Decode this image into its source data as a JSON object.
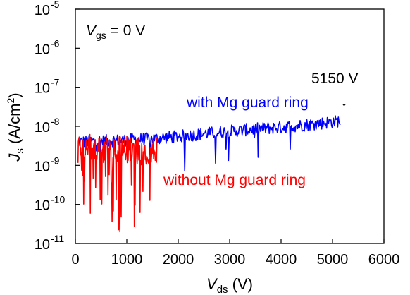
{
  "chart_data": {
    "type": "line",
    "title": "",
    "xlabel": {
      "main": "V",
      "sub": "ds",
      "unit": " (V)"
    },
    "ylabel": {
      "main": "J",
      "sub": "s",
      "unit_pre": " (A/cm",
      "unit_sup": "2",
      "unit_post": ")"
    },
    "xlim": [
      0,
      6000
    ],
    "ylim": [
      1e-11,
      1e-05
    ],
    "yscale": "log",
    "grid": false,
    "legend": "none",
    "x_ticks": [
      "0",
      "1000",
      "2000",
      "3000",
      "4000",
      "5000",
      "6000"
    ],
    "y_ticks": [
      {
        "base": "10",
        "exp": "-5"
      },
      {
        "base": "10",
        "exp": "-6"
      },
      {
        "base": "10",
        "exp": "-7"
      },
      {
        "base": "10",
        "exp": "-8"
      },
      {
        "base": "10",
        "exp": "-9"
      },
      {
        "base": "10",
        "exp": "-10"
      },
      {
        "base": "10",
        "exp": "-11"
      }
    ],
    "condition": {
      "main": "V",
      "sub": "gs",
      "rest": " = 0 V"
    },
    "series": [
      {
        "label": "with Mg guard ring",
        "color": "#0000ff",
        "x": [
          50,
          500,
          1000,
          1500,
          2000,
          2500,
          3000,
          3500,
          4000,
          4500,
          5000,
          5150
        ],
        "values": [
          4e-09,
          4.2e-09,
          4.5e-09,
          4.8e-09,
          5.5e-09,
          6.5e-09,
          7.5e-09,
          8.5e-09,
          9.5e-09,
          1.1e-08,
          1.3e-08,
          1.4e-08
        ]
      },
      {
        "label": "without Mg guard ring",
        "color": "#ff0000",
        "x": [
          50,
          200,
          400,
          600,
          800,
          1000,
          1200,
          1400,
          1600
        ],
        "values": [
          3e-09,
          3e-09,
          2.8e-09,
          2.5e-09,
          2.5e-09,
          2.5e-09,
          2.3e-09,
          2.3e-09,
          2.5e-09
        ]
      }
    ],
    "annotations": [
      {
        "text": "5150 V",
        "arrow": "↓",
        "x": 5150
      }
    ],
    "colors": {
      "axis": "#000000",
      "with_ring": "#0000ff",
      "without_ring": "#ff0000"
    }
  }
}
